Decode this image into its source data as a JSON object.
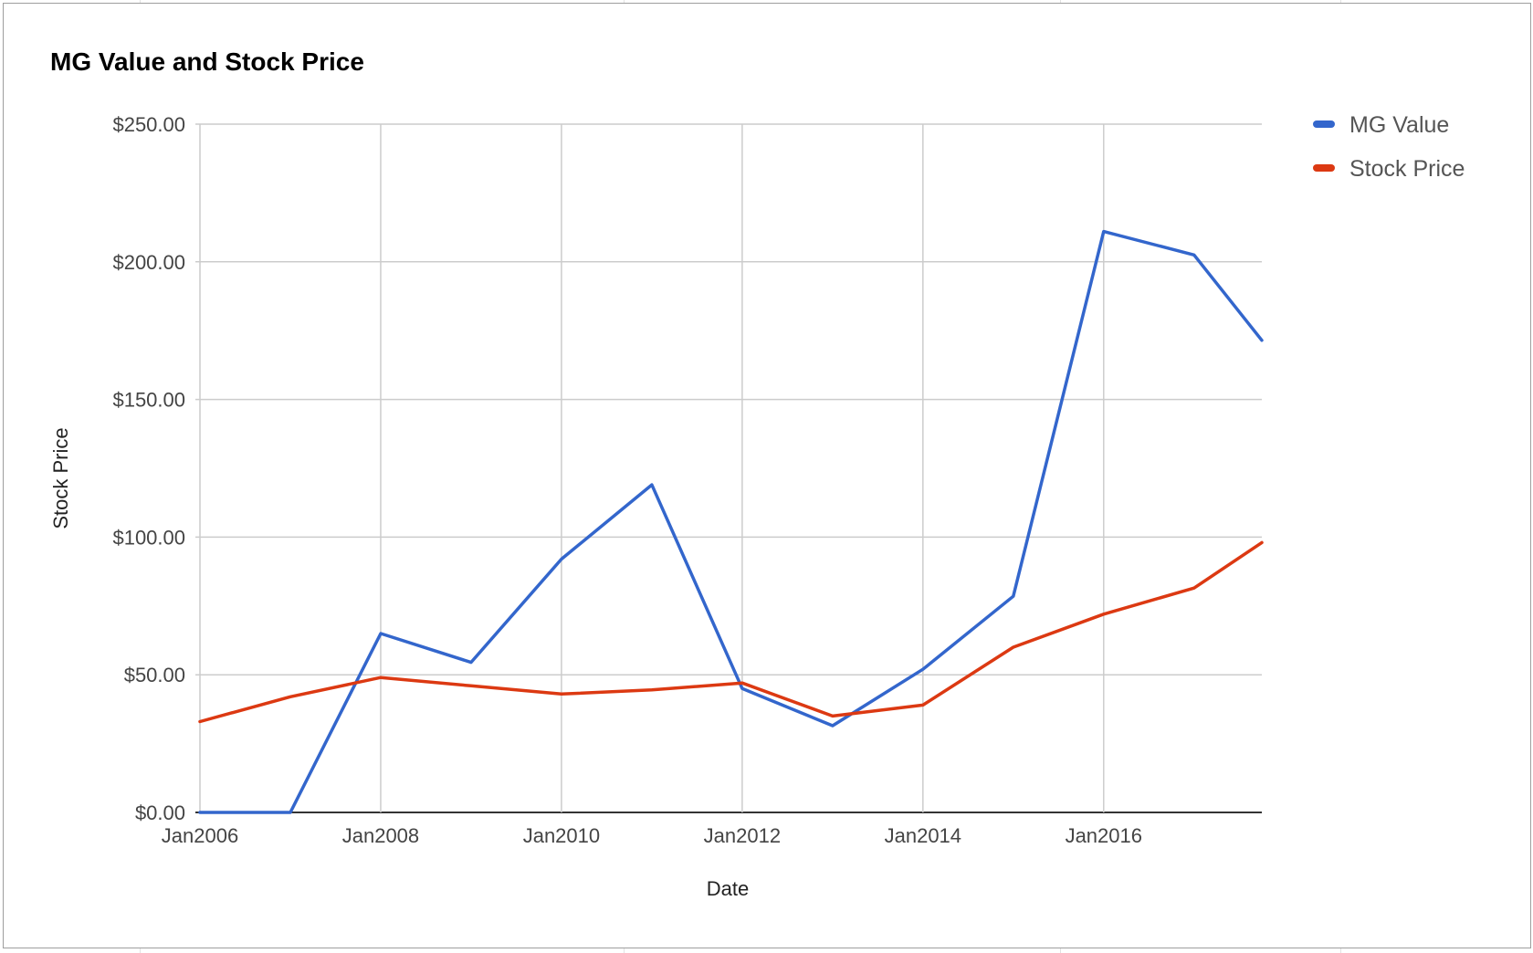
{
  "chart_data": {
    "type": "line",
    "title": "MG Value and Stock Price",
    "xlabel": "Date",
    "ylabel": "Stock Price",
    "x_ticks": [
      "Jan2006",
      "Jan2008",
      "Jan2010",
      "Jan2012",
      "Jan2014",
      "Jan2016"
    ],
    "y_ticks": [
      "$0.00",
      "$50.00",
      "$100.00",
      "$150.00",
      "$200.00",
      "$250.00"
    ],
    "ylim": [
      0,
      250
    ],
    "xlim": [
      "2005-12",
      "2017-09"
    ],
    "grid": true,
    "legend_position": "top-right",
    "x": [
      "2005-12",
      "2006-12",
      "2007-12",
      "2008-12",
      "2009-12",
      "2010-12",
      "2011-12",
      "2012-12",
      "2013-12",
      "2014-12",
      "2015-12",
      "2016-12",
      "2017-09"
    ],
    "series": [
      {
        "name": "MG Value",
        "color": "#3366cc",
        "values": [
          0,
          0,
          65,
          54.5,
          92,
          119,
          45,
          31.5,
          52,
          78.5,
          211,
          202.5,
          171.5
        ]
      },
      {
        "name": "Stock Price",
        "color": "#dc3912",
        "values": [
          33,
          42,
          49,
          46,
          43,
          44.5,
          47,
          35,
          39,
          60,
          72,
          81.5,
          98
        ]
      }
    ]
  }
}
